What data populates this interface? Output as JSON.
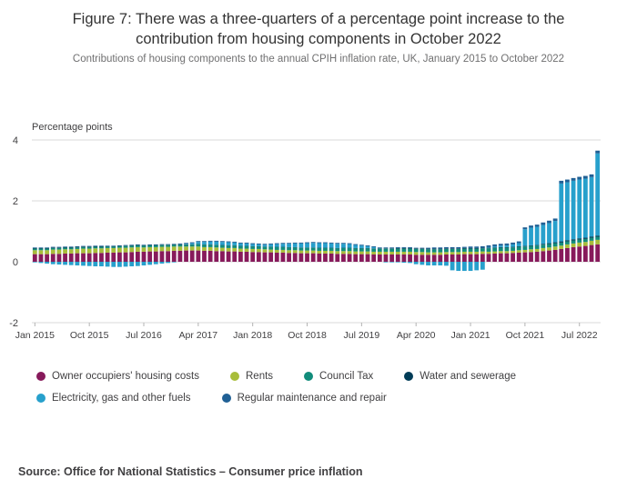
{
  "header": {
    "title": "Figure 7: There was a three-quarters of a percentage point increase to the contribution from housing components in October 2022",
    "subtitle": "Contributions of housing components to the annual CPIH inflation rate, UK, January 2015 to October 2022"
  },
  "source": {
    "text": "Source: Office for National Statistics – Consumer price inflation"
  },
  "legend": {
    "row_split": 4
  },
  "chart_data": {
    "type": "bar",
    "stacked": true,
    "title": "Contributions of housing components to the annual CPIH inflation rate, UK, January 2015 to October 2022",
    "unit_label": "Percentage points",
    "ylim": [
      -2,
      4
    ],
    "yticks": [
      4,
      2,
      0,
      -2
    ],
    "grid": "horizontal",
    "legend_position": "bottom",
    "x_start": "Jan 2015",
    "x_end": "Oct 2022",
    "n_months": 94,
    "x_ticks": [
      {
        "label": "Jan 2015",
        "index": 0
      },
      {
        "label": "Oct 2015",
        "index": 9
      },
      {
        "label": "Jul 2016",
        "index": 18
      },
      {
        "label": "Apr 2017",
        "index": 27
      },
      {
        "label": "Jan 2018",
        "index": 36
      },
      {
        "label": "Oct 2018",
        "index": 45
      },
      {
        "label": "Jul 2019",
        "index": 54
      },
      {
        "label": "Apr 2020",
        "index": 63
      },
      {
        "label": "Jan 2021",
        "index": 72
      },
      {
        "label": "Oct 2021",
        "index": 81
      },
      {
        "label": "Jul 2022",
        "index": 90
      }
    ],
    "series": [
      {
        "name": "Owner occupiers' housing costs",
        "color": "#871A5B",
        "values": [
          0.25,
          0.25,
          0.25,
          0.26,
          0.26,
          0.27,
          0.27,
          0.28,
          0.28,
          0.28,
          0.29,
          0.29,
          0.3,
          0.3,
          0.31,
          0.31,
          0.32,
          0.33,
          0.33,
          0.34,
          0.34,
          0.35,
          0.35,
          0.36,
          0.36,
          0.37,
          0.37,
          0.37,
          0.36,
          0.36,
          0.35,
          0.35,
          0.34,
          0.34,
          0.33,
          0.33,
          0.32,
          0.32,
          0.31,
          0.31,
          0.3,
          0.3,
          0.29,
          0.29,
          0.28,
          0.28,
          0.28,
          0.27,
          0.27,
          0.27,
          0.26,
          0.26,
          0.26,
          0.25,
          0.25,
          0.25,
          0.24,
          0.24,
          0.24,
          0.24,
          0.24,
          0.24,
          0.24,
          0.23,
          0.23,
          0.23,
          0.23,
          0.23,
          0.24,
          0.24,
          0.24,
          0.25,
          0.25,
          0.25,
          0.26,
          0.26,
          0.27,
          0.28,
          0.28,
          0.29,
          0.3,
          0.31,
          0.32,
          0.33,
          0.35,
          0.37,
          0.39,
          0.42,
          0.45,
          0.48,
          0.5,
          0.52,
          0.55,
          0.57
        ]
      },
      {
        "name": "Rents",
        "color": "#A8BD3A",
        "values": [
          0.13,
          0.13,
          0.13,
          0.14,
          0.14,
          0.14,
          0.14,
          0.14,
          0.15,
          0.15,
          0.15,
          0.15,
          0.15,
          0.15,
          0.15,
          0.15,
          0.15,
          0.15,
          0.14,
          0.14,
          0.14,
          0.14,
          0.14,
          0.14,
          0.14,
          0.13,
          0.13,
          0.13,
          0.12,
          0.12,
          0.12,
          0.11,
          0.11,
          0.11,
          0.1,
          0.1,
          0.1,
          0.1,
          0.1,
          0.09,
          0.09,
          0.09,
          0.09,
          0.09,
          0.09,
          0.09,
          0.09,
          0.09,
          0.09,
          0.09,
          0.09,
          0.09,
          0.09,
          0.09,
          0.09,
          0.09,
          0.09,
          0.09,
          0.09,
          0.09,
          0.09,
          0.09,
          0.09,
          0.09,
          0.09,
          0.08,
          0.08,
          0.08,
          0.08,
          0.08,
          0.08,
          0.08,
          0.08,
          0.08,
          0.08,
          0.07,
          0.07,
          0.07,
          0.07,
          0.07,
          0.08,
          0.08,
          0.09,
          0.09,
          0.1,
          0.1,
          0.11,
          0.11,
          0.12,
          0.12,
          0.13,
          0.13,
          0.14,
          0.15
        ]
      },
      {
        "name": "Council Tax",
        "color": "#118C7B",
        "values": [
          0.05,
          0.05,
          0.05,
          0.05,
          0.05,
          0.05,
          0.05,
          0.05,
          0.05,
          0.05,
          0.05,
          0.05,
          0.05,
          0.05,
          0.05,
          0.06,
          0.06,
          0.06,
          0.06,
          0.06,
          0.06,
          0.06,
          0.06,
          0.06,
          0.06,
          0.06,
          0.06,
          0.08,
          0.08,
          0.08,
          0.08,
          0.08,
          0.08,
          0.08,
          0.08,
          0.08,
          0.08,
          0.08,
          0.08,
          0.09,
          0.09,
          0.09,
          0.09,
          0.09,
          0.09,
          0.09,
          0.09,
          0.09,
          0.09,
          0.09,
          0.09,
          0.1,
          0.1,
          0.1,
          0.1,
          0.1,
          0.1,
          0.1,
          0.1,
          0.1,
          0.1,
          0.1,
          0.1,
          0.1,
          0.1,
          0.1,
          0.1,
          0.1,
          0.1,
          0.1,
          0.1,
          0.1,
          0.1,
          0.1,
          0.1,
          0.11,
          0.11,
          0.11,
          0.11,
          0.11,
          0.11,
          0.11,
          0.11,
          0.11,
          0.11,
          0.11,
          0.11,
          0.1,
          0.1,
          0.1,
          0.1,
          0.1,
          0.1,
          0.1
        ]
      },
      {
        "name": "Water and sewerage",
        "color": "#003C57",
        "values": [
          0.02,
          0.02,
          0.02,
          0.02,
          0.02,
          0.02,
          0.02,
          0.02,
          0.02,
          0.02,
          0.02,
          0.02,
          0.01,
          0.01,
          0.01,
          0.01,
          0.01,
          0.01,
          0.01,
          0.01,
          0.01,
          0.01,
          0.01,
          0.01,
          0.01,
          0.01,
          0.01,
          0.01,
          0.01,
          0.01,
          0.01,
          0.01,
          0.01,
          0.01,
          0.01,
          0.01,
          0.01,
          0.01,
          0.01,
          0.01,
          0.01,
          0.01,
          0.01,
          0.01,
          0.01,
          0.01,
          0.01,
          0.01,
          0.01,
          0.01,
          0.01,
          0.01,
          0.01,
          0.01,
          0.01,
          0.01,
          0.01,
          0.01,
          0.01,
          0.01,
          0.02,
          0.02,
          0.02,
          0.02,
          0.02,
          0.02,
          0.02,
          0.02,
          0.02,
          0.02,
          0.02,
          0.02,
          0.02,
          0.02,
          0.02,
          0.02,
          0.02,
          0.02,
          0.02,
          0.02,
          0.02,
          0.02,
          0.02,
          0.02,
          0.03,
          0.03,
          0.03,
          0.04,
          0.04,
          0.04,
          0.04,
          0.04,
          0.04,
          0.04
        ]
      },
      {
        "name": "Electricity, gas and other fuels",
        "color": "#27A0CC",
        "values": [
          -0.02,
          -0.04,
          -0.06,
          -0.08,
          -0.09,
          -0.1,
          -0.11,
          -0.12,
          -0.13,
          -0.14,
          -0.15,
          -0.15,
          -0.16,
          -0.17,
          -0.17,
          -0.16,
          -0.15,
          -0.14,
          -0.12,
          -0.1,
          -0.08,
          -0.06,
          -0.04,
          -0.02,
          0.0,
          0.02,
          0.04,
          0.06,
          0.08,
          0.09,
          0.1,
          0.1,
          0.1,
          0.09,
          0.08,
          0.08,
          0.07,
          0.06,
          0.06,
          0.07,
          0.09,
          0.1,
          0.11,
          0.12,
          0.13,
          0.14,
          0.15,
          0.15,
          0.15,
          0.14,
          0.14,
          0.13,
          0.12,
          0.1,
          0.08,
          0.06,
          0.04,
          0.0,
          -0.02,
          -0.02,
          -0.02,
          -0.03,
          -0.04,
          -0.08,
          -0.1,
          -0.12,
          -0.12,
          -0.12,
          -0.13,
          -0.28,
          -0.3,
          -0.3,
          -0.3,
          -0.28,
          -0.26,
          0.02,
          0.04,
          0.05,
          0.06,
          0.08,
          0.1,
          0.55,
          0.58,
          0.6,
          0.62,
          0.66,
          0.7,
          1.9,
          1.9,
          1.92,
          1.93,
          1.94,
          1.95,
          2.7
        ]
      },
      {
        "name": "Regular maintenance and repair",
        "color": "#206095",
        "values": [
          0.02,
          0.02,
          0.02,
          0.02,
          0.02,
          0.02,
          0.02,
          0.02,
          0.02,
          0.02,
          0.02,
          0.02,
          0.02,
          0.02,
          0.02,
          0.02,
          0.02,
          0.02,
          0.02,
          0.02,
          0.02,
          0.02,
          0.02,
          0.02,
          0.03,
          0.03,
          0.03,
          0.03,
          0.03,
          0.03,
          0.03,
          0.03,
          0.03,
          0.03,
          0.03,
          0.03,
          0.03,
          0.03,
          0.03,
          0.03,
          0.03,
          0.03,
          0.03,
          0.03,
          0.03,
          0.03,
          0.03,
          0.03,
          0.03,
          0.03,
          0.03,
          0.03,
          0.03,
          0.03,
          0.03,
          0.03,
          0.03,
          0.03,
          0.03,
          0.03,
          0.03,
          0.03,
          0.03,
          0.02,
          0.02,
          0.03,
          0.04,
          0.04,
          0.04,
          0.04,
          0.04,
          0.04,
          0.05,
          0.05,
          0.05,
          0.06,
          0.06,
          0.06,
          0.06,
          0.06,
          0.06,
          0.06,
          0.07,
          0.07,
          0.08,
          0.08,
          0.08,
          0.09,
          0.09,
          0.09,
          0.09,
          0.09,
          0.09,
          0.09
        ]
      }
    ]
  }
}
